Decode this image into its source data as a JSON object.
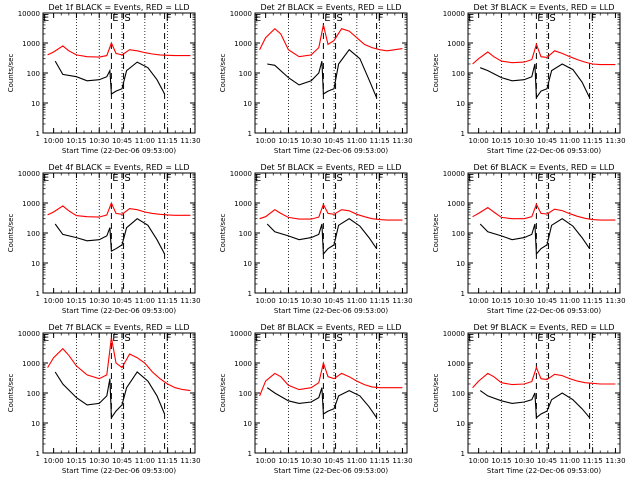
{
  "figure": {
    "background": "#ffffff",
    "axis_color": "#000000",
    "events_color": "#000000",
    "lld_color": "#ff0000",
    "ylabel": "Counts/sec",
    "xlabel": "Start Time (22-Dec-06 09:53:00)",
    "xtick_labels": [
      "10:00",
      "10:15",
      "10:30",
      "10:45",
      "11:00",
      "11:15",
      "11:30"
    ],
    "ytick_labels": [
      "1",
      "10",
      "100",
      "1000",
      "10000"
    ],
    "marker_labels": {
      "E": "E",
      "S": "S",
      "F": "F"
    }
  },
  "chart_data": [
    {
      "type": "line",
      "title": "Det 1f BLACK = Events, RED = LLD",
      "y_log": true,
      "ylim": [
        1,
        10000
      ],
      "xlim": [
        "09:53",
        "11:33"
      ],
      "dotted_lines": [
        "10:15",
        "10:30",
        "10:45",
        "11:00",
        "11:15"
      ],
      "dashed_lines": [
        "10:38",
        "10:46",
        "11:13"
      ],
      "series": [
        {
          "name": "Events",
          "color": "#000000",
          "x": [
            "10:01",
            "10:06",
            "10:15",
            "10:22",
            "10:30",
            "10:35",
            "10:37",
            "10:38",
            "10:41",
            "10:45",
            "10:48",
            "10:55",
            "11:02",
            "11:08",
            "11:13"
          ],
          "y": [
            250,
            90,
            75,
            55,
            60,
            75,
            120,
            20,
            25,
            30,
            120,
            230,
            150,
            60,
            20
          ]
        },
        {
          "name": "LLD",
          "color": "#ff0000",
          "x": [
            "09:56",
            "10:00",
            "10:06",
            "10:10",
            "10:15",
            "10:22",
            "10:30",
            "10:35",
            "10:38",
            "10:41",
            "10:45",
            "10:50",
            "10:55",
            "11:00",
            "11:05",
            "11:10",
            "11:15",
            "11:20",
            "11:25",
            "11:30"
          ],
          "y": [
            400,
            500,
            800,
            550,
            400,
            350,
            340,
            380,
            1000,
            450,
            400,
            600,
            550,
            480,
            430,
            400,
            390,
            380,
            380,
            380
          ]
        }
      ]
    },
    {
      "type": "line",
      "title": "Det 2f BLACK = Events, RED = LLD",
      "y_log": true,
      "ylim": [
        1,
        10000
      ],
      "xlim": [
        "09:53",
        "11:33"
      ],
      "dotted_lines": [
        "10:15",
        "10:30",
        "10:45",
        "11:00",
        "11:15"
      ],
      "dashed_lines": [
        "10:38",
        "10:46",
        "11:13"
      ],
      "series": [
        {
          "name": "Events",
          "color": "#000000",
          "x": [
            "10:01",
            "10:06",
            "10:15",
            "10:22",
            "10:30",
            "10:35",
            "10:37",
            "10:38",
            "10:41",
            "10:45",
            "10:48",
            "10:55",
            "11:02",
            "11:08",
            "11:13"
          ],
          "y": [
            200,
            180,
            70,
            40,
            55,
            100,
            250,
            20,
            25,
            30,
            200,
            600,
            300,
            60,
            15
          ]
        },
        {
          "name": "LLD",
          "color": "#ff0000",
          "x": [
            "09:56",
            "10:00",
            "10:06",
            "10:10",
            "10:15",
            "10:22",
            "10:30",
            "10:35",
            "10:38",
            "10:41",
            "10:45",
            "10:50",
            "10:55",
            "11:00",
            "11:05",
            "11:10",
            "11:15",
            "11:20",
            "11:25",
            "11:30"
          ],
          "y": [
            600,
            1500,
            3000,
            2000,
            600,
            350,
            400,
            700,
            4000,
            900,
            1200,
            3000,
            2500,
            1500,
            900,
            700,
            600,
            550,
            600,
            650
          ]
        }
      ]
    },
    {
      "type": "line",
      "title": "Det 3f BLACK = Events, RED = LLD",
      "y_log": true,
      "ylim": [
        1,
        10000
      ],
      "xlim": [
        "09:53",
        "11:33"
      ],
      "dotted_lines": [
        "10:15",
        "10:30",
        "10:45",
        "11:00",
        "11:15"
      ],
      "dashed_lines": [
        "10:38",
        "10:46",
        "11:13"
      ],
      "series": [
        {
          "name": "Events",
          "color": "#000000",
          "x": [
            "10:01",
            "10:06",
            "10:15",
            "10:22",
            "10:30",
            "10:35",
            "10:37",
            "10:38",
            "10:41",
            "10:45",
            "10:48",
            "10:55",
            "11:02",
            "11:08",
            "11:13"
          ],
          "y": [
            150,
            120,
            70,
            55,
            60,
            75,
            200,
            15,
            25,
            30,
            120,
            200,
            130,
            50,
            15
          ]
        },
        {
          "name": "LLD",
          "color": "#ff0000",
          "x": [
            "09:56",
            "10:00",
            "10:06",
            "10:10",
            "10:15",
            "10:22",
            "10:30",
            "10:35",
            "10:38",
            "10:41",
            "10:45",
            "10:50",
            "10:55",
            "11:00",
            "11:05",
            "11:10",
            "11:15",
            "11:20",
            "11:25",
            "11:30"
          ],
          "y": [
            200,
            300,
            500,
            350,
            250,
            220,
            230,
            280,
            900,
            350,
            330,
            550,
            450,
            350,
            280,
            230,
            200,
            190,
            190,
            190
          ]
        }
      ]
    },
    {
      "type": "line",
      "title": "Det 4f BLACK = Events, RED = LLD",
      "y_log": true,
      "ylim": [
        1,
        10000
      ],
      "xlim": [
        "09:53",
        "11:33"
      ],
      "dotted_lines": [
        "10:15",
        "10:30",
        "10:45",
        "11:00",
        "11:15"
      ],
      "dashed_lines": [
        "10:38",
        "10:46",
        "11:13"
      ],
      "series": [
        {
          "name": "Events",
          "color": "#000000",
          "x": [
            "10:01",
            "10:06",
            "10:15",
            "10:22",
            "10:30",
            "10:35",
            "10:37",
            "10:38",
            "10:41",
            "10:45",
            "10:48",
            "10:55",
            "11:02",
            "11:08",
            "11:13"
          ],
          "y": [
            200,
            90,
            70,
            55,
            60,
            80,
            150,
            25,
            30,
            40,
            150,
            300,
            180,
            60,
            20
          ]
        },
        {
          "name": "LLD",
          "color": "#ff0000",
          "x": [
            "09:56",
            "10:00",
            "10:06",
            "10:10",
            "10:15",
            "10:22",
            "10:30",
            "10:35",
            "10:38",
            "10:41",
            "10:45",
            "10:50",
            "10:55",
            "11:00",
            "11:05",
            "11:10",
            "11:15",
            "11:20",
            "11:25",
            "11:30"
          ],
          "y": [
            400,
            500,
            800,
            550,
            380,
            350,
            340,
            400,
            1000,
            450,
            420,
            650,
            600,
            500,
            450,
            420,
            400,
            390,
            390,
            390
          ]
        }
      ]
    },
    {
      "type": "line",
      "title": "Det 5f BLACK = Events, RED = LLD",
      "y_log": true,
      "ylim": [
        1,
        10000
      ],
      "xlim": [
        "09:53",
        "11:33"
      ],
      "dotted_lines": [
        "10:15",
        "10:30",
        "10:45",
        "11:00",
        "11:15"
      ],
      "dashed_lines": [
        "10:38",
        "10:46",
        "11:13"
      ],
      "series": [
        {
          "name": "Events",
          "color": "#000000",
          "x": [
            "10:01",
            "10:06",
            "10:15",
            "10:22",
            "10:30",
            "10:35",
            "10:37",
            "10:38",
            "10:41",
            "10:45",
            "10:48",
            "10:55",
            "11:02",
            "11:08",
            "11:13"
          ],
          "y": [
            200,
            110,
            80,
            60,
            70,
            90,
            200,
            20,
            30,
            40,
            180,
            300,
            170,
            70,
            30
          ]
        },
        {
          "name": "LLD",
          "color": "#ff0000",
          "x": [
            "09:56",
            "10:00",
            "10:06",
            "10:10",
            "10:15",
            "10:22",
            "10:30",
            "10:35",
            "10:38",
            "10:41",
            "10:45",
            "10:50",
            "10:55",
            "11:00",
            "11:05",
            "11:10",
            "11:15",
            "11:20",
            "11:25",
            "11:30"
          ],
          "y": [
            300,
            350,
            600,
            450,
            330,
            290,
            290,
            340,
            900,
            450,
            420,
            600,
            550,
            420,
            350,
            300,
            280,
            270,
            270,
            270
          ]
        }
      ]
    },
    {
      "type": "line",
      "title": "Det 6f BLACK = Events, RED = LLD",
      "y_log": true,
      "ylim": [
        1,
        10000
      ],
      "xlim": [
        "09:53",
        "11:33"
      ],
      "dotted_lines": [
        "10:15",
        "10:30",
        "10:45",
        "11:00",
        "11:15"
      ],
      "dashed_lines": [
        "10:38",
        "10:46",
        "11:13"
      ],
      "series": [
        {
          "name": "Events",
          "color": "#000000",
          "x": [
            "10:01",
            "10:06",
            "10:15",
            "10:22",
            "10:30",
            "10:35",
            "10:37",
            "10:38",
            "10:41",
            "10:45",
            "10:48",
            "10:55",
            "11:02",
            "11:08",
            "11:13"
          ],
          "y": [
            200,
            110,
            80,
            60,
            70,
            90,
            200,
            20,
            30,
            40,
            180,
            300,
            170,
            70,
            30
          ]
        },
        {
          "name": "LLD",
          "color": "#ff0000",
          "x": [
            "09:56",
            "10:00",
            "10:06",
            "10:10",
            "10:15",
            "10:22",
            "10:30",
            "10:35",
            "10:38",
            "10:41",
            "10:45",
            "10:50",
            "10:55",
            "11:00",
            "11:05",
            "11:10",
            "11:15",
            "11:20",
            "11:25",
            "11:30"
          ],
          "y": [
            350,
            450,
            700,
            500,
            330,
            300,
            300,
            350,
            900,
            450,
            430,
            620,
            560,
            440,
            360,
            310,
            280,
            270,
            270,
            270
          ]
        }
      ]
    },
    {
      "type": "line",
      "title": "Det 7f BLACK = Events, RED = LLD",
      "y_log": true,
      "ylim": [
        1,
        10000
      ],
      "xlim": [
        "09:53",
        "11:33"
      ],
      "dotted_lines": [
        "10:15",
        "10:30",
        "10:45",
        "11:00",
        "11:15"
      ],
      "dashed_lines": [
        "10:38",
        "10:46",
        "11:13"
      ],
      "series": [
        {
          "name": "Events",
          "color": "#000000",
          "x": [
            "10:01",
            "10:06",
            "10:15",
            "10:22",
            "10:30",
            "10:35",
            "10:37",
            "10:38",
            "10:41",
            "10:45",
            "10:48",
            "10:55",
            "11:02",
            "11:08",
            "11:13"
          ],
          "y": [
            500,
            200,
            70,
            40,
            45,
            80,
            300,
            15,
            25,
            40,
            150,
            500,
            250,
            80,
            20
          ]
        },
        {
          "name": "LLD",
          "color": "#ff0000",
          "x": [
            "09:56",
            "10:00",
            "10:06",
            "10:10",
            "10:15",
            "10:22",
            "10:30",
            "10:35",
            "10:38",
            "10:41",
            "10:45",
            "10:50",
            "10:55",
            "11:00",
            "11:05",
            "11:10",
            "11:15",
            "11:20",
            "11:25",
            "11:30"
          ],
          "y": [
            700,
            1500,
            3000,
            1800,
            800,
            400,
            300,
            400,
            7000,
            1000,
            700,
            2000,
            1500,
            1000,
            500,
            300,
            200,
            150,
            130,
            120
          ]
        }
      ]
    },
    {
      "type": "line",
      "title": "Det 8f BLACK = Events, RED = LLD",
      "y_log": true,
      "ylim": [
        1,
        10000
      ],
      "xlim": [
        "09:53",
        "11:33"
      ],
      "dotted_lines": [
        "10:15",
        "10:30",
        "10:45",
        "11:00",
        "11:15"
      ],
      "dashed_lines": [
        "10:38",
        "10:46",
        "11:13"
      ],
      "series": [
        {
          "name": "Events",
          "color": "#000000",
          "x": [
            "10:01",
            "10:06",
            "10:15",
            "10:22",
            "10:30",
            "10:35",
            "10:37",
            "10:38",
            "10:41",
            "10:45",
            "10:48",
            "10:55",
            "11:02",
            "11:08",
            "11:13"
          ],
          "y": [
            150,
            100,
            55,
            45,
            50,
            70,
            150,
            20,
            25,
            30,
            80,
            120,
            80,
            35,
            15
          ]
        },
        {
          "name": "LLD",
          "color": "#ff0000",
          "x": [
            "09:56",
            "10:00",
            "10:06",
            "10:10",
            "10:15",
            "10:22",
            "10:30",
            "10:35",
            "10:38",
            "10:41",
            "10:45",
            "10:50",
            "10:55",
            "11:00",
            "11:05",
            "11:10",
            "11:15",
            "11:20",
            "11:25",
            "11:30"
          ],
          "y": [
            80,
            250,
            450,
            350,
            180,
            130,
            150,
            220,
            1000,
            350,
            300,
            450,
            350,
            250,
            190,
            160,
            150,
            150,
            150,
            150
          ]
        }
      ]
    },
    {
      "type": "line",
      "title": "Det 9f BLACK = Events, RED = LLD",
      "y_log": true,
      "ylim": [
        1,
        10000
      ],
      "xlim": [
        "09:53",
        "11:33"
      ],
      "dotted_lines": [
        "10:15",
        "10:30",
        "10:45",
        "11:00",
        "11:15"
      ],
      "dashed_lines": [
        "10:38",
        "10:46",
        "11:13"
      ],
      "series": [
        {
          "name": "Events",
          "color": "#000000",
          "x": [
            "10:01",
            "10:06",
            "10:15",
            "10:22",
            "10:30",
            "10:35",
            "10:37",
            "10:38",
            "10:41",
            "10:45",
            "10:48",
            "10:55",
            "11:02",
            "11:08",
            "11:13"
          ],
          "y": [
            120,
            80,
            55,
            45,
            50,
            60,
            100,
            15,
            20,
            25,
            60,
            100,
            60,
            30,
            15
          ]
        },
        {
          "name": "LLD",
          "color": "#ff0000",
          "x": [
            "09:56",
            "10:00",
            "10:06",
            "10:10",
            "10:15",
            "10:22",
            "10:30",
            "10:35",
            "10:38",
            "10:41",
            "10:45",
            "10:50",
            "10:55",
            "11:00",
            "11:05",
            "11:10",
            "11:15",
            "11:20",
            "11:25",
            "11:30"
          ],
          "y": [
            150,
            250,
            450,
            350,
            220,
            190,
            200,
            240,
            700,
            300,
            280,
            420,
            380,
            300,
            250,
            220,
            210,
            200,
            200,
            200
          ]
        }
      ]
    }
  ]
}
